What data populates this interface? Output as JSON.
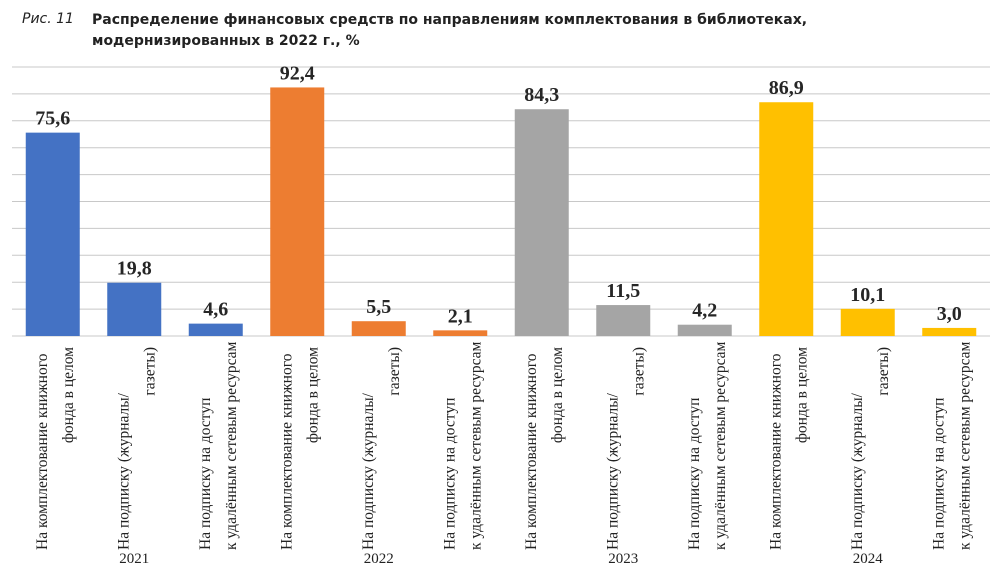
{
  "figure_label": "Рис. 11",
  "chart_data": {
    "type": "bar",
    "title": "Распределение финансовых средств по направлениям комплектования в библиотеках, модернизированных в 2022 г., %",
    "ylim": [
      0,
      100
    ],
    "grid": true,
    "groups": [
      {
        "year": "2021",
        "color": "#4472C4"
      },
      {
        "year": "2022",
        "color": "#ED7D31"
      },
      {
        "year": "2023",
        "color": "#A5A5A5"
      },
      {
        "year": "2024",
        "color": "#FFC000"
      }
    ],
    "category_labels": [
      [
        "На комплектование книжного",
        "фонда в целом"
      ],
      [
        "На подписку (журналы/",
        "газеты)"
      ],
      [
        "На подписку на доступ",
        "к удалённым сетевым ресурсам"
      ]
    ],
    "values": [
      [
        75.6,
        19.8,
        4.6
      ],
      [
        92.4,
        5.5,
        2.1
      ],
      [
        84.3,
        11.5,
        4.2
      ],
      [
        86.9,
        10.1,
        3.0
      ]
    ],
    "value_labels": [
      [
        "75,6",
        "19,8",
        "4,6"
      ],
      [
        "92,4",
        "5,5",
        "2,1"
      ],
      [
        "84,3",
        "11,5",
        "4,2"
      ],
      [
        "86,9",
        "10,1",
        "3,0"
      ]
    ]
  }
}
